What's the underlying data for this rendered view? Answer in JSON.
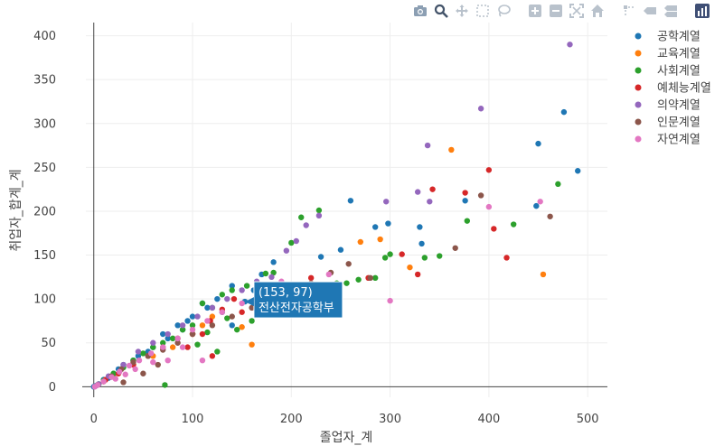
{
  "modebar": {
    "buttons": [
      {
        "name": "camera-icon",
        "active": false
      },
      {
        "name": "zoom-icon",
        "active": true
      },
      {
        "name": "pan-icon",
        "active": false
      },
      {
        "name": "box-select-icon",
        "active": false
      },
      {
        "name": "lasso-select-icon",
        "active": false
      },
      {
        "name": "zoom-in-icon",
        "active": false
      },
      {
        "name": "zoom-out-icon",
        "active": false
      },
      {
        "name": "autoscale-icon",
        "active": false
      },
      {
        "name": "home-icon",
        "active": false
      },
      {
        "name": "spike-lines-icon",
        "active": false
      },
      {
        "name": "hover-closest-icon",
        "active": false
      },
      {
        "name": "hover-compare-icon",
        "active": false
      },
      {
        "name": "plotly-logo-icon",
        "active": false
      }
    ]
  },
  "chart_data": {
    "type": "scatter",
    "title": "",
    "xlabel": "졸업자_계",
    "ylabel": "취업자_합계_계",
    "xlim": [
      -8,
      520
    ],
    "ylim": [
      -12,
      415
    ],
    "xticks": [
      0,
      100,
      200,
      300,
      400,
      500
    ],
    "yticks": [
      0,
      50,
      100,
      150,
      200,
      250,
      300,
      350,
      400
    ],
    "grid": true,
    "legend": "top-right",
    "hover": {
      "x": 153,
      "y": 97,
      "label": "(153, 97)",
      "name": "전산전자공학부",
      "color": "#1f77b4"
    },
    "series": [
      {
        "name": "공학계열",
        "color": "#1f77b4",
        "points": [
          [
            490,
            246
          ],
          [
            476,
            313
          ],
          [
            450,
            277
          ],
          [
            448,
            206
          ],
          [
            376,
            212
          ],
          [
            332,
            163
          ],
          [
            330,
            182
          ],
          [
            298,
            186
          ],
          [
            285,
            182
          ],
          [
            260,
            212
          ],
          [
            250,
            156
          ],
          [
            230,
            148
          ],
          [
            182,
            142
          ],
          [
            170,
            128
          ],
          [
            162,
            110
          ],
          [
            153,
            97
          ],
          [
            140,
            115
          ],
          [
            125,
            100
          ],
          [
            115,
            90
          ],
          [
            100,
            80
          ],
          [
            90,
            65
          ],
          [
            75,
            55
          ],
          [
            60,
            45
          ],
          [
            45,
            35
          ],
          [
            30,
            25
          ],
          [
            20,
            15
          ],
          [
            10,
            8
          ],
          [
            5,
            3
          ],
          [
            2,
            1
          ],
          [
            0,
            0
          ],
          [
            130,
            85
          ],
          [
            110,
            95
          ],
          [
            95,
            75
          ],
          [
            70,
            60
          ],
          [
            55,
            40
          ],
          [
            40,
            30
          ],
          [
            25,
            20
          ],
          [
            15,
            10
          ],
          [
            140,
            70
          ],
          [
            85,
            70
          ]
        ]
      },
      {
        "name": "교육계열",
        "color": "#ff7f0e",
        "points": [
          [
            362,
            270
          ],
          [
            455,
            128
          ],
          [
            320,
            136
          ],
          [
            290,
            168
          ],
          [
            270,
            165
          ],
          [
            160,
            48
          ],
          [
            120,
            80
          ],
          [
            100,
            60
          ],
          [
            80,
            45
          ],
          [
            60,
            35
          ],
          [
            40,
            25
          ],
          [
            20,
            12
          ],
          [
            10,
            6
          ],
          [
            150,
            68
          ],
          [
            110,
            70
          ]
        ]
      },
      {
        "name": "사회계열",
        "color": "#2ca02c",
        "points": [
          [
            470,
            231
          ],
          [
            425,
            185
          ],
          [
            378,
            189
          ],
          [
            350,
            149
          ],
          [
            335,
            147
          ],
          [
            300,
            151
          ],
          [
            295,
            147
          ],
          [
            285,
            124
          ],
          [
            268,
            122
          ],
          [
            256,
            118
          ],
          [
            246,
            118
          ],
          [
            238,
            113
          ],
          [
            228,
            201
          ],
          [
            210,
            193
          ],
          [
            200,
            164
          ],
          [
            182,
            130
          ],
          [
            174,
            129
          ],
          [
            155,
            115
          ],
          [
            140,
            110
          ],
          [
            130,
            105
          ],
          [
            120,
            90
          ],
          [
            110,
            95
          ],
          [
            100,
            70
          ],
          [
            90,
            65
          ],
          [
            80,
            55
          ],
          [
            70,
            50
          ],
          [
            60,
            45
          ],
          [
            50,
            38
          ],
          [
            40,
            30
          ],
          [
            30,
            22
          ],
          [
            20,
            15
          ],
          [
            10,
            7
          ],
          [
            5,
            3
          ],
          [
            72,
            2
          ],
          [
            125,
            40
          ],
          [
            145,
            65
          ],
          [
            160,
            75
          ],
          [
            105,
            48
          ],
          [
            115,
            62
          ],
          [
            135,
            78
          ]
        ]
      },
      {
        "name": "예체능계열",
        "color": "#d62728",
        "points": [
          [
            400,
            247
          ],
          [
            376,
            221
          ],
          [
            418,
            147
          ],
          [
            405,
            180
          ],
          [
            343,
            225
          ],
          [
            328,
            128
          ],
          [
            278,
            124
          ],
          [
            312,
            151
          ],
          [
            220,
            124
          ],
          [
            200,
            108
          ],
          [
            165,
            118
          ],
          [
            142,
            100
          ],
          [
            130,
            88
          ],
          [
            118,
            75
          ],
          [
            100,
            60
          ],
          [
            85,
            55
          ],
          [
            70,
            45
          ],
          [
            55,
            35
          ],
          [
            40,
            25
          ],
          [
            25,
            15
          ],
          [
            12,
            8
          ],
          [
            150,
            85
          ],
          [
            110,
            60
          ],
          [
            95,
            45
          ],
          [
            120,
            35
          ]
        ]
      },
      {
        "name": "의약계열",
        "color": "#9467bd",
        "points": [
          [
            482,
            390
          ],
          [
            392,
            317
          ],
          [
            338,
            275
          ],
          [
            340,
            211
          ],
          [
            328,
            222
          ],
          [
            296,
            211
          ],
          [
            228,
            195
          ],
          [
            215,
            184
          ],
          [
            205,
            166
          ],
          [
            195,
            155
          ],
          [
            180,
            125
          ],
          [
            165,
            120
          ],
          [
            150,
            110
          ],
          [
            135,
            100
          ],
          [
            120,
            90
          ],
          [
            105,
            80
          ],
          [
            90,
            70
          ],
          [
            75,
            60
          ],
          [
            60,
            50
          ],
          [
            45,
            40
          ],
          [
            30,
            25
          ],
          [
            15,
            12
          ],
          [
            5,
            3
          ]
        ]
      },
      {
        "name": "인문계열",
        "color": "#8c564b",
        "points": [
          [
            462,
            194
          ],
          [
            392,
            218
          ],
          [
            366,
            158
          ],
          [
            280,
            124
          ],
          [
            258,
            140
          ],
          [
            240,
            130
          ],
          [
            220,
            118
          ],
          [
            200,
            110
          ],
          [
            180,
            100
          ],
          [
            160,
            90
          ],
          [
            140,
            80
          ],
          [
            120,
            70
          ],
          [
            100,
            60
          ],
          [
            85,
            50
          ],
          [
            70,
            42
          ],
          [
            55,
            35
          ],
          [
            40,
            28
          ],
          [
            28,
            20
          ],
          [
            18,
            12
          ],
          [
            10,
            6
          ],
          [
            4,
            2
          ],
          [
            30,
            5
          ],
          [
            50,
            15
          ],
          [
            65,
            25
          ]
        ]
      },
      {
        "name": "자연계열",
        "color": "#e377c2",
        "points": [
          [
            452,
            211
          ],
          [
            400,
            205
          ],
          [
            300,
            98
          ],
          [
            238,
            128
          ],
          [
            190,
            120
          ],
          [
            170,
            110
          ],
          [
            150,
            95
          ],
          [
            130,
            85
          ],
          [
            115,
            75
          ],
          [
            100,
            65
          ],
          [
            85,
            55
          ],
          [
            70,
            45
          ],
          [
            58,
            38
          ],
          [
            46,
            30
          ],
          [
            36,
            24
          ],
          [
            26,
            17
          ],
          [
            18,
            11
          ],
          [
            10,
            6
          ],
          [
            4,
            2
          ],
          [
            1,
            0
          ],
          [
            110,
            30
          ],
          [
            90,
            45
          ],
          [
            75,
            30
          ],
          [
            60,
            28
          ],
          [
            42,
            20
          ],
          [
            32,
            14
          ],
          [
            22,
            9
          ]
        ]
      }
    ]
  }
}
